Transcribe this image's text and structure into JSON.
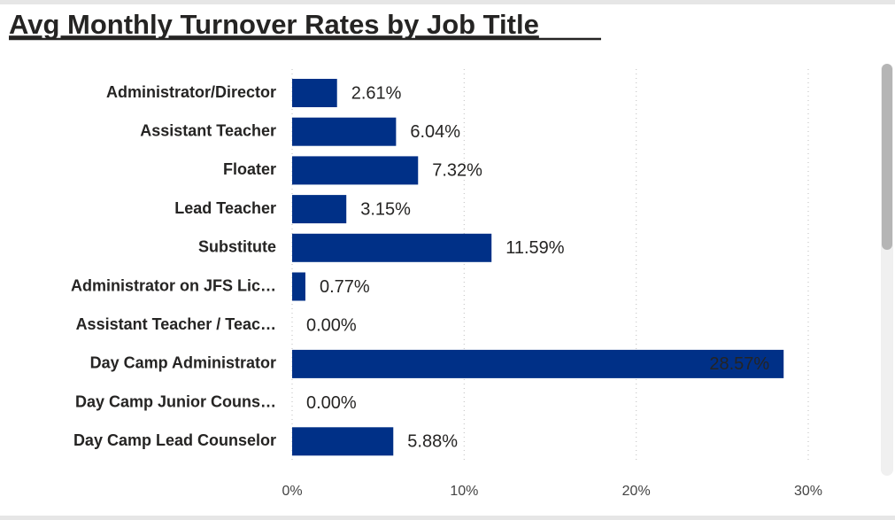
{
  "chart_data": {
    "type": "hbar",
    "title": "Avg Monthly Turnover Rates by Job Title",
    "categories": [
      "Administrator/Director",
      "Assistant Teacher",
      "Floater",
      "Lead Teacher",
      "Substitute",
      "Administrator on JFS Lic…",
      "Assistant Teacher / Teac…",
      "Day Camp Administrator",
      "Day Camp Junior Couns…",
      "Day Camp Lead Counselor"
    ],
    "values": [
      2.61,
      6.04,
      7.32,
      3.15,
      11.59,
      0.77,
      0.0,
      28.57,
      0.0,
      5.88
    ],
    "value_labels": [
      "2.61%",
      "6.04%",
      "7.32%",
      "3.15%",
      "11.59%",
      "0.77%",
      "0.00%",
      "28.57%",
      "0.00%",
      "5.88%"
    ],
    "color": "#003087",
    "xlim": [
      0,
      30
    ],
    "xticks": [
      {
        "value": 0,
        "label": "0%"
      },
      {
        "value": 10,
        "label": "10%"
      },
      {
        "value": 20,
        "label": "20%"
      },
      {
        "value": 30,
        "label": "30%"
      }
    ],
    "grid": true
  }
}
